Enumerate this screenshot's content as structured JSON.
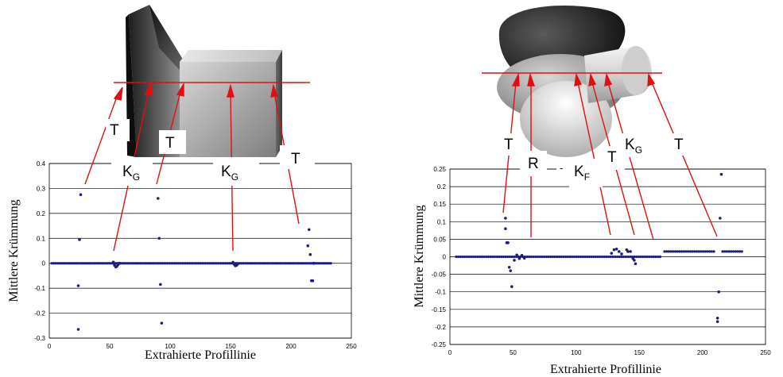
{
  "chart_data": [
    {
      "type": "scatter",
      "title": "",
      "xlabel": "Extrahierte Profillinie",
      "ylabel": "Mittlere Krümmung",
      "xlim": [
        0,
        250
      ],
      "ylim": [
        -0.3,
        0.4
      ],
      "xticks": [
        "0",
        "50",
        "100",
        "150",
        "200",
        "250"
      ],
      "yticks": [
        "0.4",
        "0.3",
        "0.2",
        "0.1",
        "0",
        "-0.1",
        "-0.2",
        "-0.3"
      ],
      "grid": true,
      "marker_color": "#1f1f7a",
      "annotations": [
        {
          "text": "T"
        },
        {
          "text": "K",
          "sub": "G"
        },
        {
          "text": "T"
        },
        {
          "text": "K",
          "sub": "G"
        },
        {
          "text": "T"
        }
      ],
      "series": [
        {
          "points": [
            [
              24,
              -0.265
            ],
            [
              24,
              -0.09
            ],
            [
              25,
              0.095
            ],
            [
              26,
              0.275
            ],
            [
              53,
              0.005
            ],
            [
              54,
              -0.008
            ],
            [
              55,
              -0.015
            ],
            [
              56,
              -0.012
            ],
            [
              57,
              -0.005
            ],
            [
              58,
              0.0
            ],
            [
              90,
              0.26
            ],
            [
              91,
              0.1
            ],
            [
              92,
              -0.085
            ],
            [
              93,
              -0.24
            ],
            [
              152,
              0.004
            ],
            [
              153,
              -0.004
            ],
            [
              154,
              -0.01
            ],
            [
              155,
              -0.008
            ],
            [
              156,
              -0.003
            ],
            [
              214,
              0.07
            ],
            [
              215,
              0.135
            ],
            [
              216,
              0.035
            ],
            [
              217,
              -0.07
            ],
            [
              218,
              -0.07
            ],
            [
              219,
              0.0
            ]
          ],
          "baseline": {
            "y": 0,
            "x_from": 2,
            "x_to": 234,
            "step": 1.5
          }
        }
      ]
    },
    {
      "type": "scatter",
      "title": "",
      "xlabel": "Extrahierte Profillinie",
      "ylabel": "Mittlere Krümmung",
      "xlim": [
        0,
        250
      ],
      "ylim": [
        -0.25,
        0.25
      ],
      "xticks": [
        "0",
        "50",
        "100",
        "150",
        "200",
        "250"
      ],
      "yticks": [
        "0.25",
        "0.2",
        "0.15",
        "0.1",
        "0.05",
        "0",
        "-0.05",
        "-0.1",
        "-0.15",
        "-0.2",
        "-0.25"
      ],
      "grid": true,
      "marker_color": "#1f1f7a",
      "annotations": [
        {
          "text": "T"
        },
        {
          "text": "R"
        },
        {
          "text": "-"
        },
        {
          "text": "K",
          "sub": "F"
        },
        {
          "text": "T"
        },
        {
          "text": "K",
          "sub": "G"
        },
        {
          "text": "T"
        }
      ],
      "series": [
        {
          "points": [
            [
              44,
              0.11
            ],
            [
              44,
              0.08
            ],
            [
              45,
              0.04
            ],
            [
              46,
              0.04
            ],
            [
              47,
              -0.03
            ],
            [
              48,
              -0.04
            ],
            [
              49,
              -0.085
            ],
            [
              51,
              -0.01
            ],
            [
              53,
              0.005
            ],
            [
              55,
              -0.005
            ],
            [
              57,
              0.004
            ],
            [
              59,
              -0.004
            ],
            [
              128,
              0.01
            ],
            [
              130,
              0.02
            ],
            [
              132,
              0.022
            ],
            [
              134,
              0.015
            ],
            [
              136,
              0.008
            ],
            [
              140,
              0.02
            ],
            [
              141,
              0.015
            ],
            [
              143,
              0.015
            ],
            [
              145,
              -0.005
            ],
            [
              146,
              -0.01
            ],
            [
              147,
              -0.02
            ],
            [
              212,
              -0.175
            ],
            [
              212,
              -0.185
            ],
            [
              213,
              -0.1
            ],
            [
              214,
              0.11
            ],
            [
              215,
              0.235
            ]
          ],
          "baselines": [
            {
              "y": 0,
              "x_from": 5,
              "x_to": 168,
              "step": 1.7
            },
            {
              "y": 0.015,
              "x_from": 170,
              "x_to": 210,
              "step": 1.7
            },
            {
              "y": 0.015,
              "x_from": 216,
              "x_to": 232,
              "step": 1.7
            }
          ]
        }
      ]
    }
  ]
}
